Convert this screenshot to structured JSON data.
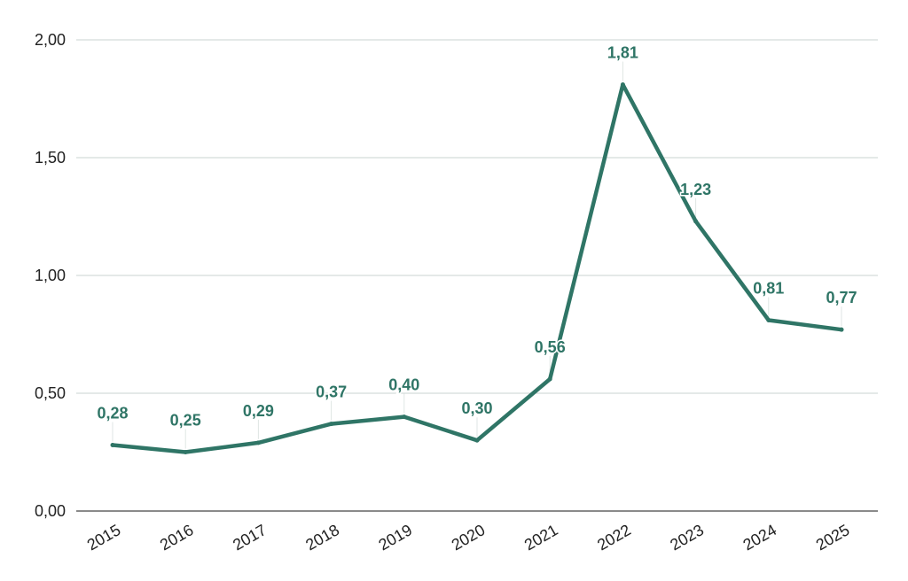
{
  "chart_data": {
    "type": "line",
    "title": "",
    "xlabel": "",
    "ylabel": "",
    "categories": [
      "2015",
      "2016",
      "2017",
      "2018",
      "2019",
      "2020",
      "2021",
      "2022",
      "2023",
      "2024",
      "2025"
    ],
    "series": [
      {
        "name": "",
        "values": [
          0.28,
          0.25,
          0.29,
          0.37,
          0.4,
          0.3,
          0.56,
          1.81,
          1.23,
          0.81,
          0.77
        ],
        "labels": [
          "0,28",
          "0,25",
          "0,29",
          "0,37",
          "0,40",
          "0,30",
          "0,56",
          "1,81",
          "1,23",
          "0,81",
          "0,77"
        ]
      }
    ],
    "ylim": [
      0,
      2
    ],
    "yticks": [
      0,
      0.5,
      1,
      1.5,
      2
    ],
    "ytick_labels": [
      "0,00",
      "0,50",
      "1,00",
      "1,50",
      "2,00"
    ],
    "grid": true,
    "legend": "none",
    "colors": {
      "line": "#2f7566",
      "label": "#2f7566",
      "grid": "#c9d3d0",
      "axis": "#444444"
    }
  }
}
